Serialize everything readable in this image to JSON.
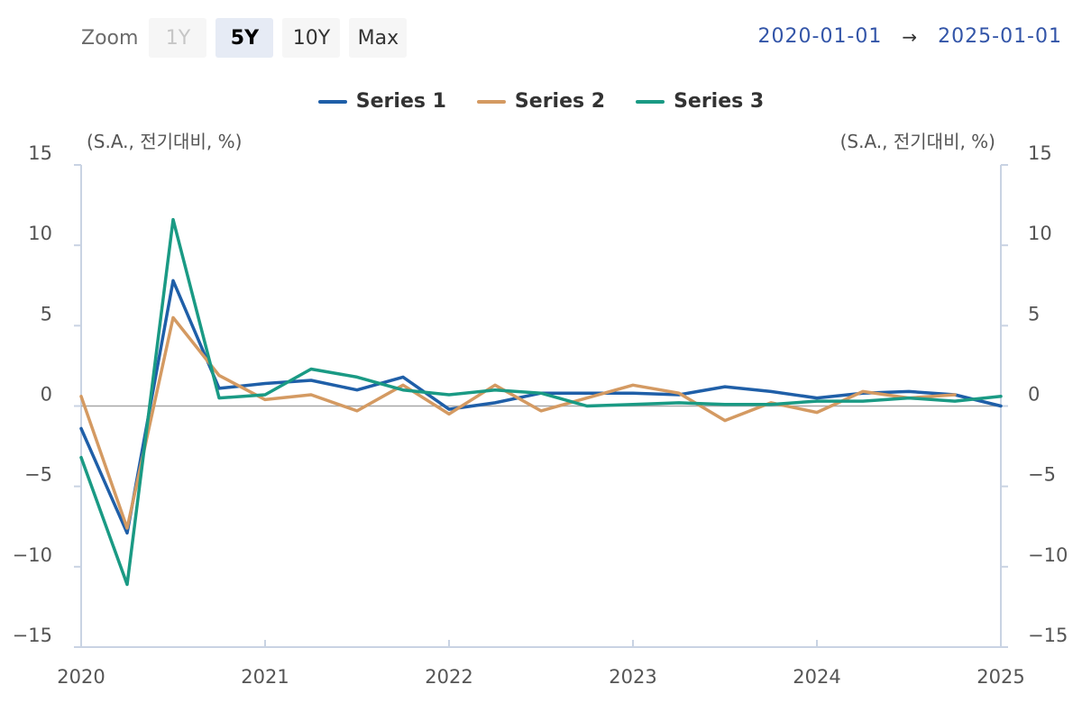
{
  "toolbar": {
    "zoom_label": "Zoom",
    "buttons": [
      {
        "label": "1Y",
        "state": "disabled"
      },
      {
        "label": "5Y",
        "state": "active"
      },
      {
        "label": "10Y",
        "state": "normal"
      },
      {
        "label": "Max",
        "state": "normal"
      }
    ]
  },
  "range": {
    "from": "2020-01-01",
    "arrow": "→",
    "to": "2025-01-01"
  },
  "chart_data": {
    "type": "line",
    "title": "",
    "y_unit_left": "(S.A., 전기대비, %)",
    "y_unit_right": "(S.A., 전기대비, %)",
    "ylim": [
      -15,
      15
    ],
    "yticks": [
      -15,
      -10,
      -5,
      0,
      5,
      10,
      15
    ],
    "ytick_labels": [
      "−15",
      "−10",
      "−5",
      "0",
      "5",
      "10",
      "15"
    ],
    "xlim": [
      "2020-01-01",
      "2025-01-01"
    ],
    "xticks": [
      "2020",
      "2021",
      "2022",
      "2023",
      "2024",
      "2025"
    ],
    "grid": false,
    "zero_line": true,
    "legend_position": "top-center",
    "x": [
      "2020-Q1",
      "2020-Q2",
      "2020-Q3",
      "2020-Q4",
      "2021-Q1",
      "2021-Q2",
      "2021-Q3",
      "2021-Q4",
      "2022-Q1",
      "2022-Q2",
      "2022-Q3",
      "2022-Q4",
      "2023-Q1",
      "2023-Q2",
      "2023-Q3",
      "2023-Q4",
      "2024-Q1",
      "2024-Q2",
      "2024-Q3",
      "2024-Q4",
      "2025-Q1"
    ],
    "series": [
      {
        "name": "Series 1",
        "color": "#1f5fa8",
        "values": [
          -1.4,
          -7.9,
          7.8,
          1.1,
          1.4,
          1.6,
          1.0,
          1.8,
          -0.2,
          0.2,
          0.8,
          0.8,
          0.8,
          0.7,
          1.2,
          0.9,
          0.5,
          0.8,
          0.9,
          0.7,
          0.0
        ]
      },
      {
        "name": "Series 2",
        "color": "#d49a62",
        "values": [
          0.6,
          -7.6,
          5.5,
          1.9,
          0.4,
          0.7,
          -0.3,
          1.3,
          -0.5,
          1.3,
          -0.3,
          0.5,
          1.3,
          0.8,
          -0.9,
          0.2,
          -0.4,
          0.9,
          0.5,
          0.7,
          null
        ]
      },
      {
        "name": "Series 3",
        "color": "#1a9a84",
        "values": [
          -3.2,
          -11.1,
          11.6,
          0.5,
          0.7,
          2.3,
          1.8,
          1.0,
          0.7,
          1.0,
          0.8,
          0.0,
          0.1,
          0.2,
          0.1,
          0.1,
          0.3,
          0.3,
          0.5,
          0.3,
          0.6
        ]
      }
    ]
  }
}
